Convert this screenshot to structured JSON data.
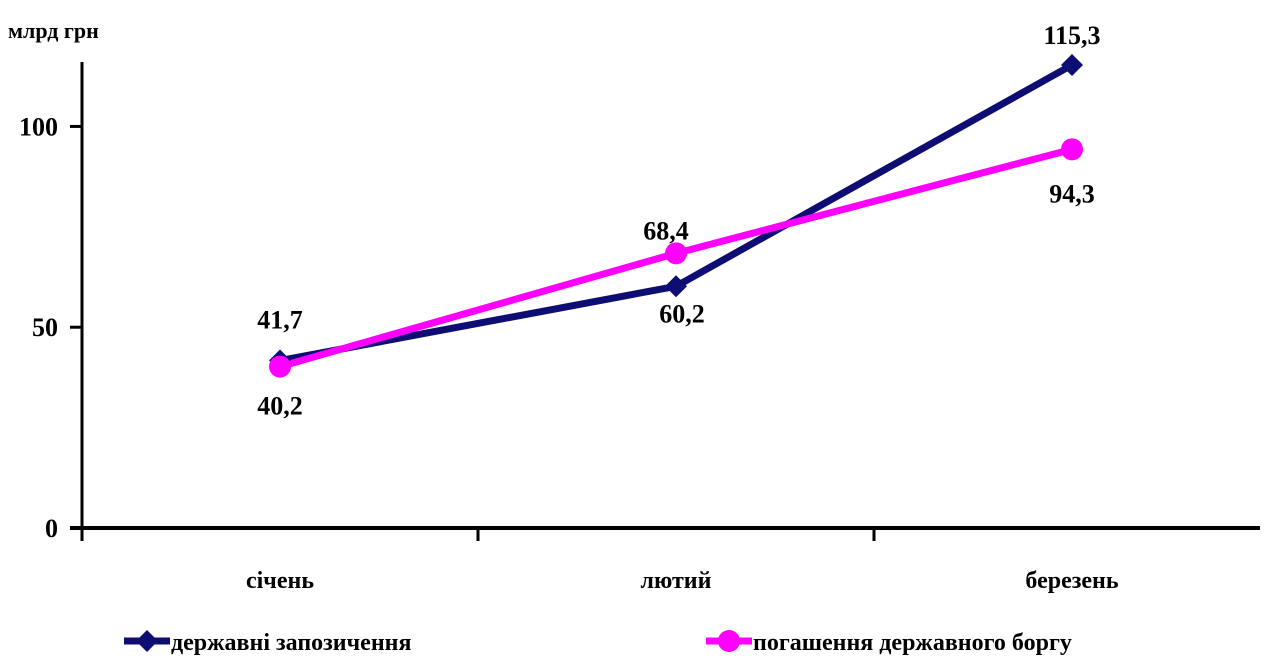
{
  "chart_data": {
    "type": "line",
    "title": "",
    "xlabel": "",
    "ylabel": "млрд грн",
    "ylim": [
      0,
      115
    ],
    "yticks": [
      0,
      50,
      100
    ],
    "categories": [
      "січень",
      "лютий",
      "березень"
    ],
    "grid": false,
    "legend_position": "bottom",
    "series": [
      {
        "name": "державні запозичення",
        "values": [
          41.7,
          60.2,
          115.3
        ],
        "value_labels": [
          "41,7",
          "60,2",
          "115,3"
        ],
        "color": "#0d0d73",
        "marker": "diamond"
      },
      {
        "name": "погашення державного боргу",
        "values": [
          40.2,
          68.4,
          94.3
        ],
        "value_labels": [
          "40,2",
          "68,4",
          "94,3"
        ],
        "color": "#ff00ff",
        "marker": "circle"
      }
    ]
  }
}
